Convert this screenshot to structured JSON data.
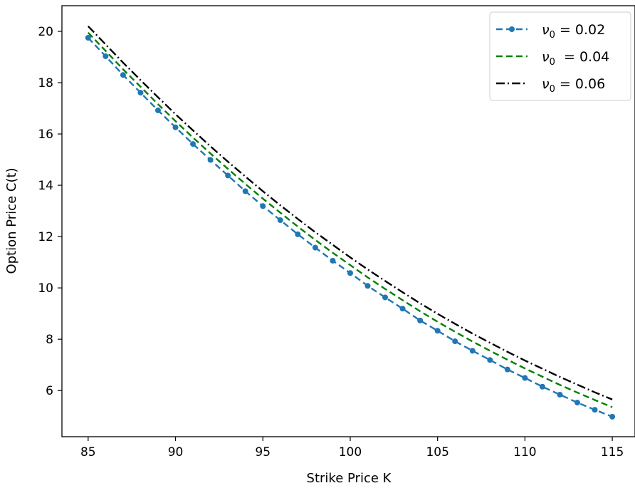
{
  "chart_data": {
    "type": "line",
    "title": "",
    "xlabel": "Strike Price K",
    "ylabel": "Option Price C(t)",
    "xlim": [
      83.5,
      116.3
    ],
    "ylim": [
      4.2,
      21.0
    ],
    "xticks": [
      85,
      90,
      95,
      100,
      105,
      110,
      115
    ],
    "yticks": [
      6,
      8,
      10,
      12,
      14,
      16,
      18,
      20
    ],
    "grid": false,
    "legend_position": "top-right",
    "x": [
      85,
      86,
      87,
      88,
      89,
      90,
      91,
      92,
      93,
      94,
      95,
      96,
      97,
      98,
      99,
      100,
      101,
      102,
      103,
      104,
      105,
      106,
      107,
      108,
      109,
      110,
      111,
      112,
      113,
      114,
      115
    ],
    "series": [
      {
        "legend_base": "ν",
        "legend_sub": "0",
        "legend_rest": " = 0.02",
        "color": "#1f77b4",
        "dash": "9,5",
        "marker": "circle",
        "values": [
          19.75,
          19.03,
          18.3,
          17.61,
          16.92,
          16.26,
          15.61,
          14.99,
          14.38,
          13.77,
          13.19,
          12.64,
          12.09,
          11.57,
          11.06,
          10.58,
          10.08,
          9.63,
          9.19,
          8.73,
          8.33,
          7.92,
          7.55,
          7.19,
          6.82,
          6.49,
          6.15,
          5.84,
          5.53,
          5.25,
          4.98
        ]
      },
      {
        "legend_base": "ν",
        "legend_sub": "0",
        "legend_rest": "  = 0.04",
        "color": "#008000",
        "dash": "9,5",
        "marker": "none",
        "values": [
          19.95,
          19.24,
          18.52,
          17.84,
          17.16,
          16.5,
          15.86,
          15.24,
          14.64,
          14.05,
          13.48,
          12.93,
          12.39,
          11.87,
          11.37,
          10.89,
          10.41,
          9.96,
          9.52,
          9.09,
          8.68,
          8.29,
          7.91,
          7.55,
          7.2,
          6.86,
          6.54,
          6.22,
          5.92,
          5.63,
          5.35
        ]
      },
      {
        "legend_base": "ν",
        "legend_sub": "0",
        "legend_rest": " = 0.06",
        "color": "#000000",
        "dash": "12,4,2,4",
        "marker": "none",
        "values": [
          20.2,
          19.49,
          18.78,
          18.1,
          17.43,
          16.77,
          16.14,
          15.52,
          14.92,
          14.34,
          13.77,
          13.22,
          12.69,
          12.17,
          11.68,
          11.19,
          10.72,
          10.27,
          9.83,
          9.4,
          8.99,
          8.6,
          8.22,
          7.86,
          7.51,
          7.17,
          6.85,
          6.53,
          6.23,
          5.93,
          5.65
        ]
      }
    ]
  }
}
